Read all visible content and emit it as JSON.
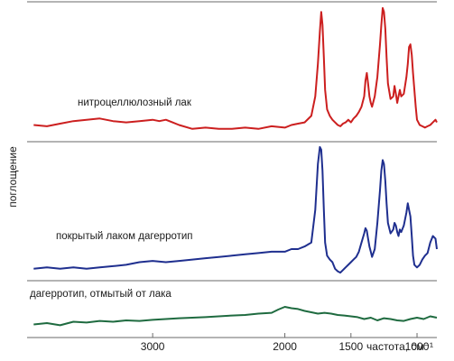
{
  "chart_data": {
    "type": "line",
    "title": "",
    "xlabel": "частота, см⁻¹",
    "ylabel": "поглощение",
    "x_reversed": true,
    "xlim": [
      3950,
      850
    ],
    "xticks": [
      {
        "value": 3000,
        "label": "3000"
      },
      {
        "value": 2000,
        "label": "2000"
      },
      {
        "value": 1500,
        "label": "1500"
      },
      {
        "value": 1000,
        "label": "1000"
      }
    ],
    "grid": false,
    "series": [
      {
        "name": "нитроцеллюлозный лак",
        "color": "#cc1f1f",
        "x": [
          3900,
          3800,
          3700,
          3600,
          3500,
          3400,
          3300,
          3200,
          3100,
          3000,
          2950,
          2900,
          2850,
          2800,
          2700,
          2600,
          2500,
          2400,
          2300,
          2200,
          2100,
          2000,
          1950,
          1900,
          1850,
          1800,
          1770,
          1750,
          1735,
          1725,
          1715,
          1705,
          1695,
          1680,
          1660,
          1640,
          1620,
          1600,
          1580,
          1560,
          1540,
          1520,
          1500,
          1480,
          1460,
          1440,
          1420,
          1400,
          1390,
          1380,
          1370,
          1360,
          1350,
          1340,
          1320,
          1300,
          1280,
          1270,
          1260,
          1250,
          1240,
          1230,
          1220,
          1200,
          1180,
          1170,
          1160,
          1150,
          1140,
          1130,
          1120,
          1100,
          1080,
          1070,
          1060,
          1050,
          1040,
          1030,
          1020,
          1010,
          1000,
          990,
          980,
          960,
          940,
          920,
          900,
          880,
          860,
          850
        ],
        "y": [
          0.08,
          0.07,
          0.09,
          0.11,
          0.12,
          0.13,
          0.11,
          0.1,
          0.11,
          0.12,
          0.11,
          0.12,
          0.1,
          0.08,
          0.05,
          0.06,
          0.05,
          0.05,
          0.06,
          0.05,
          0.07,
          0.06,
          0.08,
          0.09,
          0.1,
          0.15,
          0.3,
          0.55,
          0.8,
          0.95,
          0.85,
          0.6,
          0.35,
          0.2,
          0.15,
          0.12,
          0.1,
          0.08,
          0.07,
          0.09,
          0.1,
          0.12,
          0.1,
          0.13,
          0.15,
          0.18,
          0.22,
          0.3,
          0.42,
          0.48,
          0.4,
          0.3,
          0.25,
          0.22,
          0.3,
          0.45,
          0.7,
          0.85,
          0.98,
          0.95,
          0.82,
          0.6,
          0.4,
          0.28,
          0.3,
          0.38,
          0.32,
          0.25,
          0.3,
          0.35,
          0.3,
          0.32,
          0.45,
          0.55,
          0.68,
          0.7,
          0.62,
          0.48,
          0.35,
          0.22,
          0.12,
          0.1,
          0.08,
          0.07,
          0.06,
          0.07,
          0.08,
          0.1,
          0.12,
          0.1
        ]
      },
      {
        "name": "покрытый лаком дагерротип",
        "color": "#1f2f8f",
        "x": [
          3900,
          3800,
          3700,
          3600,
          3500,
          3400,
          3300,
          3200,
          3100,
          3000,
          2900,
          2800,
          2700,
          2600,
          2500,
          2400,
          2300,
          2200,
          2100,
          2000,
          1950,
          1900,
          1850,
          1800,
          1770,
          1750,
          1735,
          1725,
          1715,
          1705,
          1695,
          1680,
          1660,
          1640,
          1620,
          1600,
          1580,
          1560,
          1540,
          1520,
          1500,
          1480,
          1460,
          1440,
          1420,
          1400,
          1390,
          1380,
          1370,
          1360,
          1350,
          1340,
          1320,
          1300,
          1280,
          1270,
          1260,
          1250,
          1240,
          1230,
          1220,
          1200,
          1180,
          1170,
          1160,
          1150,
          1140,
          1130,
          1120,
          1100,
          1080,
          1070,
          1060,
          1050,
          1040,
          1030,
          1020,
          1010,
          1000,
          990,
          980,
          960,
          940,
          920,
          900,
          880,
          860,
          850
        ],
        "y": [
          0.05,
          0.06,
          0.05,
          0.06,
          0.05,
          0.06,
          0.07,
          0.08,
          0.1,
          0.11,
          0.1,
          0.11,
          0.12,
          0.13,
          0.14,
          0.15,
          0.16,
          0.17,
          0.18,
          0.18,
          0.2,
          0.2,
          0.22,
          0.25,
          0.5,
          0.85,
          0.98,
          0.96,
          0.8,
          0.5,
          0.25,
          0.15,
          0.12,
          0.1,
          0.05,
          0.03,
          0.02,
          0.04,
          0.06,
          0.08,
          0.1,
          0.12,
          0.14,
          0.18,
          0.25,
          0.32,
          0.36,
          0.34,
          0.28,
          0.22,
          0.18,
          0.14,
          0.2,
          0.4,
          0.65,
          0.8,
          0.88,
          0.85,
          0.72,
          0.55,
          0.4,
          0.32,
          0.35,
          0.4,
          0.38,
          0.33,
          0.3,
          0.35,
          0.33,
          0.38,
          0.48,
          0.55,
          0.5,
          0.45,
          0.3,
          0.15,
          0.08,
          0.07,
          0.06,
          0.07,
          0.08,
          0.12,
          0.15,
          0.17,
          0.25,
          0.3,
          0.28,
          0.2
        ]
      },
      {
        "name": "дагерротип, отмытый от лака",
        "color": "#1f6b40",
        "x": [
          3900,
          3800,
          3700,
          3600,
          3500,
          3400,
          3300,
          3200,
          3100,
          3000,
          2900,
          2800,
          2700,
          2600,
          2500,
          2400,
          2300,
          2200,
          2100,
          2050,
          2000,
          1950,
          1900,
          1850,
          1800,
          1750,
          1700,
          1650,
          1600,
          1550,
          1500,
          1450,
          1400,
          1350,
          1300,
          1250,
          1200,
          1150,
          1100,
          1050,
          1000,
          950,
          900,
          850
        ],
        "y": [
          0.15,
          0.2,
          0.12,
          0.25,
          0.22,
          0.28,
          0.25,
          0.3,
          0.28,
          0.32,
          0.35,
          0.38,
          0.4,
          0.42,
          0.45,
          0.48,
          0.5,
          0.55,
          0.58,
          0.7,
          0.8,
          0.75,
          0.72,
          0.65,
          0.6,
          0.55,
          0.58,
          0.55,
          0.5,
          0.48,
          0.45,
          0.42,
          0.35,
          0.4,
          0.3,
          0.38,
          0.35,
          0.3,
          0.28,
          0.35,
          0.4,
          0.35,
          0.45,
          0.4
        ]
      }
    ]
  }
}
